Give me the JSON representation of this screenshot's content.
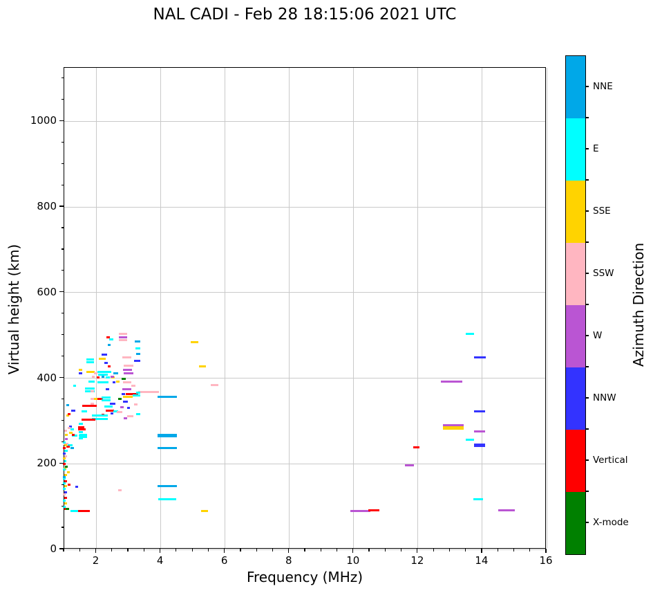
{
  "title": "NAL CADI - Feb 28 18:15:06 2021 UTC",
  "chart_data": {
    "type": "scatter",
    "title": "NAL CADI - Feb 28 18:15:06 2021 UTC",
    "xlabel": "Frequency (MHz)",
    "ylabel": "Virtual height (km)",
    "xlim": [
      1,
      16
    ],
    "ylim": [
      0,
      1125
    ],
    "xticks": [
      2,
      4,
      6,
      8,
      10,
      12,
      14,
      16
    ],
    "yticks": [
      0,
      200,
      400,
      600,
      800,
      1000
    ],
    "x_minor_step": 0.5,
    "y_minor_step": 50,
    "grid": true,
    "legend": {
      "title": "Azimuth Direction",
      "position": "right-colorbar",
      "entries": [
        {
          "key": "NNE",
          "label": "NNE"
        },
        {
          "key": "E",
          "label": "E"
        },
        {
          "key": "SSE",
          "label": "SSE"
        },
        {
          "key": "SSW",
          "label": "SSW"
        },
        {
          "key": "W",
          "label": "W"
        },
        {
          "key": "NNW",
          "label": "NNW"
        },
        {
          "key": "V",
          "label": "Vertical"
        },
        {
          "key": "X",
          "label": "X-mode"
        }
      ]
    },
    "colors": {
      "NNE": "#00A8E8",
      "E": "#00FFFF",
      "SSE": "#FFD300",
      "SSW": "#FFB6C1",
      "W": "#BA55D3",
      "NNW": "#3333FF",
      "V": "#FF0000",
      "X": "#008000"
    },
    "point_units": "[freq_MHz, height_km, direction_key, width_MHz, thick_flag]",
    "points": [
      [
        3.1,
        363,
        "V",
        0.38
      ],
      [
        3.62,
        368,
        "SSW",
        0.66
      ],
      [
        2.84,
        363,
        "NNW",
        0.1
      ],
      [
        4.2,
        356,
        "NNE",
        0.6
      ],
      [
        4.2,
        266,
        "NNE",
        0.6,
        1
      ],
      [
        4.2,
        236,
        "NNE",
        0.6
      ],
      [
        4.2,
        148,
        "NNE",
        0.6
      ],
      [
        4.2,
        117,
        "E",
        0.55
      ],
      [
        5.05,
        484,
        "SSE",
        0.22
      ],
      [
        5.3,
        428,
        "SSE",
        0.22
      ],
      [
        5.67,
        384,
        "SSW",
        0.24
      ],
      [
        5.37,
        90,
        "SSE",
        0.22
      ],
      [
        2.73,
        138,
        "SSW",
        0.1
      ],
      [
        10.2,
        89,
        "W",
        0.62
      ],
      [
        10.63,
        92,
        "V",
        0.36
      ],
      [
        11.73,
        196,
        "W",
        0.28
      ],
      [
        11.95,
        238,
        "V",
        0.2
      ],
      [
        13.05,
        392,
        "W",
        0.66
      ],
      [
        13.1,
        290,
        "W",
        0.64
      ],
      [
        13.1,
        284,
        "SSE",
        0.64,
        1
      ],
      [
        13.62,
        503,
        "E",
        0.26
      ],
      [
        13.92,
        448,
        "NNW",
        0.36
      ],
      [
        13.92,
        322,
        "NNW",
        0.34
      ],
      [
        13.92,
        243,
        "NNW",
        0.34,
        1
      ],
      [
        13.92,
        276,
        "W",
        0.34
      ],
      [
        13.62,
        256,
        "E",
        0.26
      ],
      [
        13.88,
        117,
        "E",
        0.3
      ],
      [
        14.75,
        91,
        "W",
        0.52
      ],
      [
        2.82,
        503,
        "SSW",
        0.26
      ],
      [
        2.82,
        496,
        "W",
        0.26
      ],
      [
        2.82,
        489,
        "SSW",
        0.26
      ],
      [
        2.37,
        496,
        "V",
        0.1
      ],
      [
        2.46,
        491,
        "E",
        0.12
      ],
      [
        3.28,
        486,
        "NNE",
        0.18
      ],
      [
        3.29,
        470,
        "E",
        0.14
      ],
      [
        3.3,
        457,
        "NNE",
        0.14
      ],
      [
        3.27,
        441,
        "NNW",
        0.18
      ],
      [
        2.4,
        477,
        "NNE",
        0.1
      ],
      [
        2.25,
        455,
        "NNW",
        0.16
      ],
      [
        2.18,
        446,
        "SSE",
        0.2
      ],
      [
        1.8,
        443,
        "E",
        0.24
      ],
      [
        1.8,
        437,
        "E",
        0.24
      ],
      [
        2.3,
        436,
        "NNW",
        0.1
      ],
      [
        2.95,
        448,
        "SSW",
        0.28
      ],
      [
        3.0,
        429,
        "SSW",
        0.3
      ],
      [
        2.97,
        419,
        "W",
        0.28
      ],
      [
        2.4,
        428,
        "V",
        0.1
      ],
      [
        1.82,
        415,
        "SSE",
        0.26
      ],
      [
        1.5,
        419,
        "SSE",
        0.1
      ],
      [
        1.5,
        412,
        "NNW",
        0.1
      ],
      [
        2.25,
        414,
        "E",
        0.44
      ],
      [
        2.2,
        408,
        "E",
        0.3
      ],
      [
        2.6,
        411,
        "NNE",
        0.16
      ],
      [
        1.98,
        412,
        "SSW",
        0.12
      ],
      [
        3.0,
        412,
        "W",
        0.3
      ],
      [
        2.05,
        402,
        "V",
        0.1
      ],
      [
        2.35,
        402,
        "E",
        0.14
      ],
      [
        2.52,
        402,
        "SSE",
        0.1
      ],
      [
        2.85,
        399,
        "X",
        0.12
      ],
      [
        1.9,
        404,
        "SSW",
        0.1
      ],
      [
        2.2,
        403,
        "NNE",
        0.1
      ],
      [
        2.5,
        404,
        "W",
        0.1
      ],
      [
        1.85,
        392,
        "E",
        0.2
      ],
      [
        2.2,
        390,
        "E",
        0.34
      ],
      [
        2.55,
        390,
        "NNW",
        0.1
      ],
      [
        2.67,
        392,
        "SSE",
        0.1
      ],
      [
        2.95,
        390,
        "SSW",
        0.26
      ],
      [
        3.15,
        382,
        "SSW",
        0.12
      ],
      [
        1.8,
        376,
        "E",
        0.3
      ],
      [
        1.8,
        370,
        "E",
        0.3
      ],
      [
        2.95,
        374,
        "W",
        0.28
      ],
      [
        2.35,
        374,
        "NNW",
        0.1
      ],
      [
        3.3,
        366,
        "E",
        0.14
      ],
      [
        2.98,
        357,
        "SSE",
        0.3
      ],
      [
        3.25,
        360,
        "E",
        0.24
      ],
      [
        1.95,
        352,
        "SSE",
        0.24
      ],
      [
        2.12,
        352,
        "V",
        0.16
      ],
      [
        2.3,
        354,
        "E",
        0.3
      ],
      [
        2.3,
        348,
        "E",
        0.3
      ],
      [
        2.73,
        352,
        "X",
        0.1
      ],
      [
        2.9,
        345,
        "NNW",
        0.16
      ],
      [
        2.5,
        341,
        "NNW",
        0.16
      ],
      [
        1.87,
        370,
        "SSW",
        0.1
      ],
      [
        1.87,
        352,
        "SSW",
        0.1
      ],
      [
        1.87,
        340,
        "SSW",
        0.1
      ],
      [
        1.78,
        336,
        "V",
        0.44
      ],
      [
        2.38,
        334,
        "E",
        0.26
      ],
      [
        2.8,
        332,
        "W",
        0.1
      ],
      [
        3.0,
        330,
        "NNW",
        0.1
      ],
      [
        3.22,
        338,
        "SSW",
        0.1
      ],
      [
        1.28,
        324,
        "NNW",
        0.12
      ],
      [
        1.62,
        323,
        "E",
        0.16
      ],
      [
        2.42,
        324,
        "V",
        0.24
      ],
      [
        2.6,
        323,
        "E",
        0.16
      ],
      [
        2.72,
        321,
        "SSW",
        0.18
      ],
      [
        2.48,
        317,
        "NNW",
        0.1
      ],
      [
        2.2,
        315,
        "V",
        0.1
      ],
      [
        1.1,
        312,
        "SSE",
        0.08
      ],
      [
        1.15,
        316,
        "V",
        0.08
      ],
      [
        2.1,
        312,
        "E",
        0.5
      ],
      [
        2.1,
        305,
        "E",
        0.5
      ],
      [
        1.75,
        303,
        "V",
        0.44
      ],
      [
        2.9,
        306,
        "W",
        0.12
      ],
      [
        3.05,
        311,
        "SSW",
        0.2
      ],
      [
        3.3,
        316,
        "E",
        0.14
      ],
      [
        1.1,
        337,
        "NNE",
        0.08
      ],
      [
        1.32,
        382,
        "E",
        0.1
      ],
      [
        1.52,
        293,
        "E",
        0.12
      ],
      [
        1.52,
        286,
        "V",
        0.2
      ],
      [
        1.55,
        280,
        "V",
        0.24
      ],
      [
        1.52,
        274,
        "E",
        0.12
      ],
      [
        1.52,
        266,
        "E",
        0.12
      ],
      [
        1.52,
        259,
        "E",
        0.12
      ],
      [
        1.2,
        287,
        "NNW",
        0.08
      ],
      [
        1.05,
        277,
        "SSW",
        0.08
      ],
      [
        1.07,
        268,
        "SSE",
        0.08
      ],
      [
        1.06,
        258,
        "W",
        0.08
      ],
      [
        1.6,
        268,
        "E",
        0.24
      ],
      [
        1.6,
        262,
        "E",
        0.24
      ],
      [
        1.32,
        266,
        "E",
        0.16
      ],
      [
        1.15,
        283,
        "SSW",
        0.1
      ],
      [
        1.25,
        280,
        "E",
        0.12
      ],
      [
        1.2,
        272,
        "SSE",
        0.1
      ],
      [
        1.28,
        268,
        "V",
        0.1
      ],
      [
        1.05,
        246,
        "SSW",
        0.16
      ],
      [
        1.18,
        244,
        "E",
        0.16
      ],
      [
        1.12,
        240,
        "V",
        0.1
      ],
      [
        1.25,
        237,
        "NNE",
        0.1
      ],
      [
        1.02,
        188,
        "SSE",
        0.08
      ],
      [
        1.13,
        180,
        "SSE",
        0.08
      ],
      [
        1.0,
        166,
        "E",
        0.1
      ],
      [
        1.15,
        151,
        "V",
        0.08
      ],
      [
        1.38,
        146,
        "NNW",
        0.08
      ],
      [
        1.0,
        250,
        "E",
        0.1
      ],
      [
        1.04,
        243,
        "SSE",
        0.08
      ],
      [
        1.0,
        236,
        "V",
        0.08
      ],
      [
        1.06,
        230,
        "E",
        0.1
      ],
      [
        1.0,
        224,
        "NNW",
        0.08
      ],
      [
        1.05,
        218,
        "SSW",
        0.08
      ],
      [
        1.0,
        212,
        "SSE",
        0.1
      ],
      [
        1.03,
        206,
        "E",
        0.08
      ],
      [
        1.0,
        199,
        "V",
        0.08
      ],
      [
        1.06,
        193,
        "X",
        0.08
      ],
      [
        1.0,
        186,
        "E",
        0.1
      ],
      [
        1.04,
        174,
        "SSE",
        0.08
      ],
      [
        1.0,
        169,
        "NNE",
        0.08
      ],
      [
        1.05,
        160,
        "V",
        0.08
      ],
      [
        1.0,
        155,
        "E",
        0.08
      ],
      [
        1.04,
        148,
        "SSE",
        0.08
      ],
      [
        1.0,
        141,
        "E",
        0.1
      ],
      [
        1.05,
        134,
        "NNW",
        0.08
      ],
      [
        1.0,
        128,
        "SSW",
        0.08
      ],
      [
        1.04,
        121,
        "V",
        0.08
      ],
      [
        1.0,
        114,
        "E",
        0.1
      ],
      [
        1.05,
        107,
        "SSE",
        0.08
      ],
      [
        1.0,
        100,
        "E",
        0.08
      ],
      [
        1.04,
        94,
        "V",
        0.08
      ],
      [
        1.1,
        95,
        "X",
        0.1
      ],
      [
        1.3,
        90,
        "E",
        0.2
      ],
      [
        1.45,
        90,
        "E",
        0.1
      ],
      [
        1.62,
        89,
        "V",
        0.36
      ]
    ]
  }
}
